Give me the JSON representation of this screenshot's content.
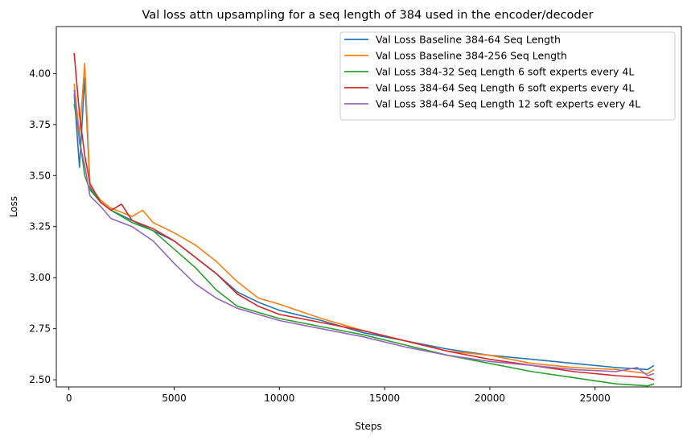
{
  "chart_data": {
    "type": "line",
    "title": "Val loss attn upsampling for a seq length of 384 used in the encoder/decoder",
    "xlabel": "Steps",
    "ylabel": "Loss",
    "xlim": [
      -600,
      29100
    ],
    "ylim": [
      2.465,
      4.23
    ],
    "xticks": [
      0,
      5000,
      10000,
      15000,
      20000,
      25000
    ],
    "xtick_labels": [
      "0",
      "5000",
      "10000",
      "15000",
      "20000",
      "25000"
    ],
    "yticks": [
      2.5,
      2.75,
      3.0,
      3.25,
      3.5,
      3.75,
      4.0
    ],
    "ytick_labels": [
      "2.50",
      "2.75",
      "3.00",
      "3.25",
      "3.50",
      "3.75",
      "4.00"
    ],
    "grid": false,
    "legend_position": "top-right",
    "series": [
      {
        "name": "Val Loss Baseline 384-64 Seq Length",
        "color": "#1f77b4",
        "x": [
          250,
          500,
          750,
          1000,
          1500,
          2000,
          3000,
          4000,
          5000,
          6000,
          7000,
          8000,
          9000,
          10000,
          12000,
          14000,
          16000,
          18000,
          20000,
          22000,
          24000,
          26000,
          27500,
          27800
        ],
        "y": [
          3.9,
          3.54,
          3.98,
          3.44,
          3.37,
          3.33,
          3.28,
          3.23,
          3.18,
          3.1,
          3.02,
          2.93,
          2.88,
          2.84,
          2.79,
          2.73,
          2.69,
          2.65,
          2.62,
          2.6,
          2.58,
          2.56,
          2.55,
          2.57
        ]
      },
      {
        "name": "Val Loss Baseline 384-256 Seq Length",
        "color": "#ff7f0e",
        "x": [
          250,
          500,
          750,
          1000,
          1500,
          2000,
          3000,
          3500,
          4000,
          5000,
          6000,
          7000,
          8000,
          9000,
          10000,
          12000,
          14000,
          16000,
          18000,
          20000,
          22000,
          24000,
          26000,
          27500,
          27800
        ],
        "y": [
          3.95,
          3.7,
          4.05,
          3.45,
          3.38,
          3.34,
          3.3,
          3.33,
          3.27,
          3.22,
          3.16,
          3.08,
          2.98,
          2.9,
          2.87,
          2.8,
          2.74,
          2.69,
          2.64,
          2.62,
          2.58,
          2.56,
          2.55,
          2.53,
          2.55
        ]
      },
      {
        "name": "Val Loss 384-32 Seq Length 6 soft experts every 4L",
        "color": "#2ca02c",
        "x": [
          250,
          500,
          750,
          1000,
          1500,
          2000,
          3000,
          4000,
          5000,
          6000,
          7000,
          8000,
          9000,
          10000,
          12000,
          14000,
          16000,
          18000,
          20000,
          22000,
          24000,
          26000,
          27500,
          27800
        ],
        "y": [
          3.85,
          3.69,
          3.5,
          3.43,
          3.37,
          3.33,
          3.27,
          3.23,
          3.14,
          3.05,
          2.94,
          2.86,
          2.83,
          2.8,
          2.76,
          2.72,
          2.67,
          2.62,
          2.58,
          2.54,
          2.51,
          2.48,
          2.47,
          2.48
        ]
      },
      {
        "name": "Val Loss 384-64 Seq Length 6 soft experts every 4L",
        "color": "#d62728",
        "x": [
          250,
          500,
          750,
          1000,
          1500,
          2000,
          2500,
          3000,
          4000,
          5000,
          6000,
          7000,
          8000,
          9000,
          10000,
          12000,
          14000,
          16000,
          18000,
          20000,
          22000,
          24000,
          26000,
          27500,
          27800
        ],
        "y": [
          4.1,
          3.8,
          3.6,
          3.46,
          3.37,
          3.33,
          3.36,
          3.28,
          3.24,
          3.18,
          3.1,
          3.02,
          2.92,
          2.86,
          2.82,
          2.78,
          2.74,
          2.69,
          2.64,
          2.6,
          2.57,
          2.54,
          2.52,
          2.51,
          2.5
        ]
      },
      {
        "name": "Val Loss 384-64 Seq Length 12 soft experts every 4L",
        "color": "#9467bd",
        "x": [
          250,
          500,
          750,
          1000,
          1500,
          2000,
          3000,
          4000,
          5000,
          6000,
          7000,
          8000,
          9000,
          10000,
          12000,
          14000,
          16000,
          18000,
          20000,
          22000,
          24000,
          26000,
          27000,
          27500,
          27800
        ],
        "y": [
          3.92,
          3.66,
          3.55,
          3.4,
          3.35,
          3.29,
          3.25,
          3.18,
          3.07,
          2.97,
          2.9,
          2.85,
          2.82,
          2.79,
          2.75,
          2.71,
          2.66,
          2.62,
          2.59,
          2.57,
          2.55,
          2.54,
          2.56,
          2.52,
          2.53
        ]
      }
    ]
  }
}
